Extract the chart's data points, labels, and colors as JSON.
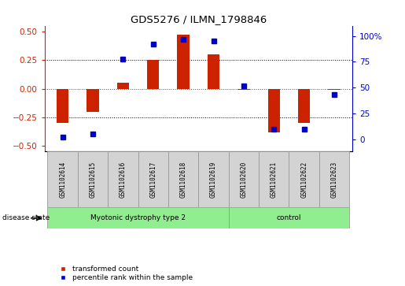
{
  "title": "GDS5276 / ILMN_1798846",
  "samples": [
    "GSM1102614",
    "GSM1102615",
    "GSM1102616",
    "GSM1102617",
    "GSM1102618",
    "GSM1102619",
    "GSM1102620",
    "GSM1102621",
    "GSM1102622",
    "GSM1102623"
  ],
  "red_values": [
    -0.3,
    -0.2,
    0.05,
    0.25,
    0.47,
    0.3,
    -0.01,
    -0.38,
    -0.3,
    -0.01
  ],
  "blue_values": [
    2,
    5,
    78,
    92,
    97,
    95,
    52,
    10,
    10,
    43
  ],
  "disease_groups": [
    {
      "label": "Myotonic dystrophy type 2",
      "start": 0,
      "end": 6,
      "color": "#90EE90"
    },
    {
      "label": "control",
      "start": 6,
      "end": 10,
      "color": "#90EE90"
    }
  ],
  "ylim_left": [
    -0.55,
    0.55
  ],
  "ylim_right": [
    -12.0,
    110.0
  ],
  "yticks_left": [
    -0.5,
    -0.25,
    0,
    0.25,
    0.5
  ],
  "yticks_right": [
    0,
    25,
    50,
    75,
    100
  ],
  "ytick_labels_right": [
    "0",
    "25",
    "50",
    "75",
    "100%"
  ],
  "hlines_dotted": [
    0.25,
    -0.25
  ],
  "hline_red": 0.0,
  "red_color": "#CC2200",
  "blue_color": "#0000CC",
  "bar_width": 0.4,
  "legend_items": [
    "transformed count",
    "percentile rank within the sample"
  ],
  "disease_label": "disease state",
  "gray_box_color": "#D3D3D3",
  "box_edge_color": "#999999"
}
